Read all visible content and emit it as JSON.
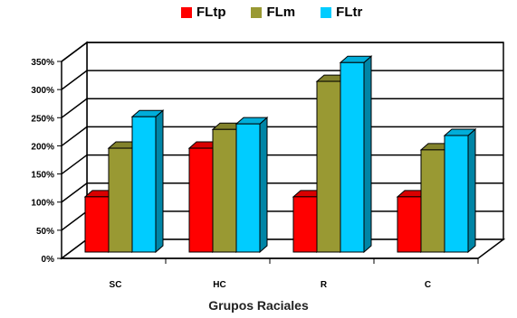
{
  "chart_data": {
    "type": "bar",
    "subtype": "3d-clustered",
    "categories": [
      "SC",
      "HC",
      "R",
      "C"
    ],
    "series": [
      {
        "name": "FLtp",
        "color": "#ff0000",
        "values": [
          100,
          188,
          100,
          100
        ]
      },
      {
        "name": "FLm",
        "color": "#999933",
        "values": [
          188,
          222,
          309,
          185
        ]
      },
      {
        "name": "FLtr",
        "color": "#00ccff",
        "values": [
          245,
          232,
          343,
          211
        ]
      }
    ],
    "y_ticks": [
      "0%",
      "50%",
      "100%",
      "150%",
      "200%",
      "250%",
      "300%",
      "350%"
    ],
    "ylim": [
      0,
      350
    ],
    "xlabel": "Grupos Raciales",
    "ylabel": "",
    "title": "",
    "grid": true,
    "legend_position": "top"
  }
}
